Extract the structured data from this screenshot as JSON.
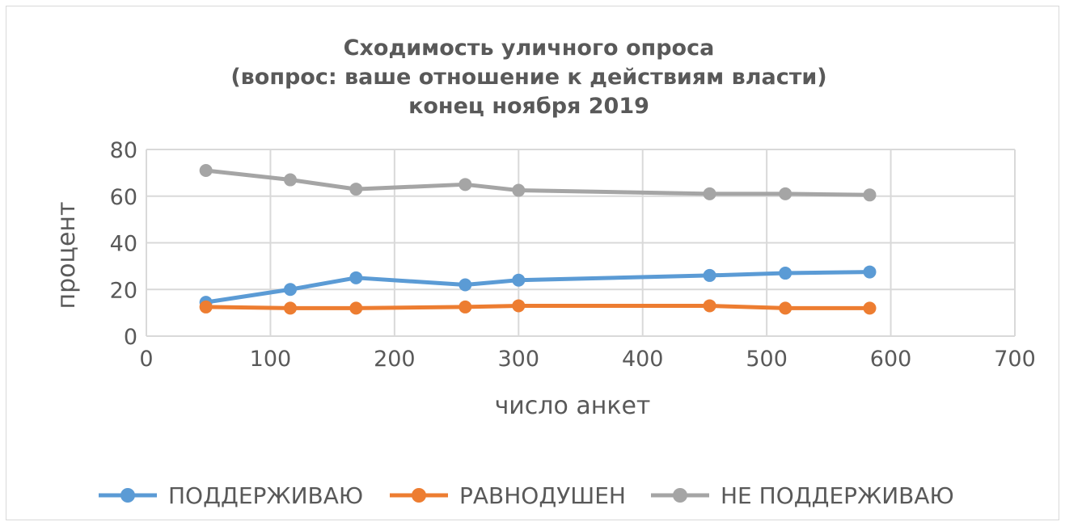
{
  "chart_data": {
    "type": "line",
    "title_lines": [
      "Сходимость уличного опроса",
      "(вопрос: ваше отношение к действиям власти)",
      "конец ноября 2019"
    ],
    "xlabel": "число анкет",
    "ylabel": "процент",
    "xlim": [
      0,
      700
    ],
    "ylim": [
      0,
      80
    ],
    "x_ticks": [
      0,
      100,
      200,
      300,
      400,
      500,
      600,
      700
    ],
    "y_ticks": [
      0,
      20,
      40,
      60,
      80
    ],
    "grid": true,
    "legend_position": "bottom",
    "series": [
      {
        "name": "ПОДДЕРЖИВАЮ",
        "color": "#5b9bd5",
        "x": [
          48,
          116,
          169,
          257,
          300,
          454,
          515,
          583
        ],
        "y": [
          14.5,
          20,
          25,
          22,
          24,
          26,
          27,
          27.5
        ]
      },
      {
        "name": "РАВНОДУШЕН",
        "color": "#ed7d31",
        "x": [
          48,
          116,
          169,
          257,
          300,
          454,
          515,
          583
        ],
        "y": [
          12.5,
          12,
          12,
          12.5,
          13,
          13,
          12,
          12
        ]
      },
      {
        "name": "НЕ ПОДДЕРЖИВАЮ",
        "color": "#a5a5a5",
        "x": [
          48,
          116,
          169,
          257,
          300,
          454,
          515,
          583
        ],
        "y": [
          71,
          67,
          63,
          65,
          62.5,
          61,
          61,
          60.5
        ]
      }
    ]
  }
}
